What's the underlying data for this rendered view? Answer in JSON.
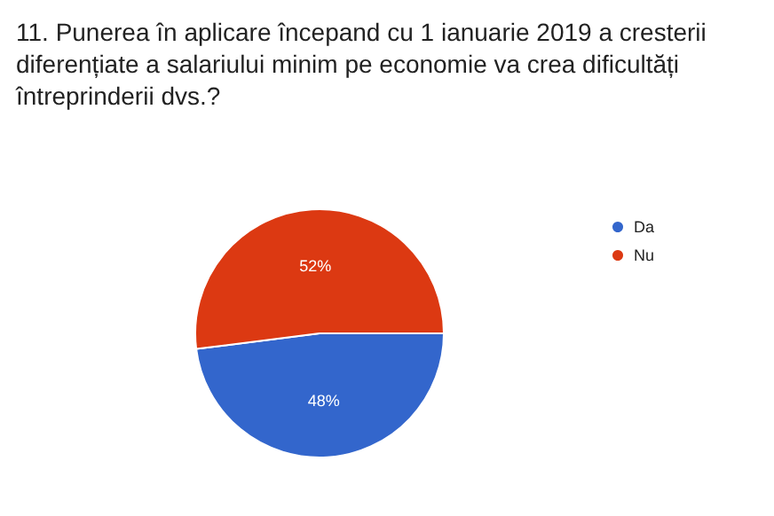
{
  "chart_data": {
    "type": "pie",
    "title": "11. Punerea în aplicare începand cu 1 ianuarie 2019 a cresterii diferențiate a salariului minim pe economie va crea dificultăți întreprinderii dvs.?",
    "categories": [
      "Da",
      "Nu"
    ],
    "values": [
      48,
      52
    ],
    "value_labels": [
      "48%",
      "52%"
    ],
    "colors": [
      "#3366cc",
      "#dc3912"
    ],
    "legend": "right"
  }
}
